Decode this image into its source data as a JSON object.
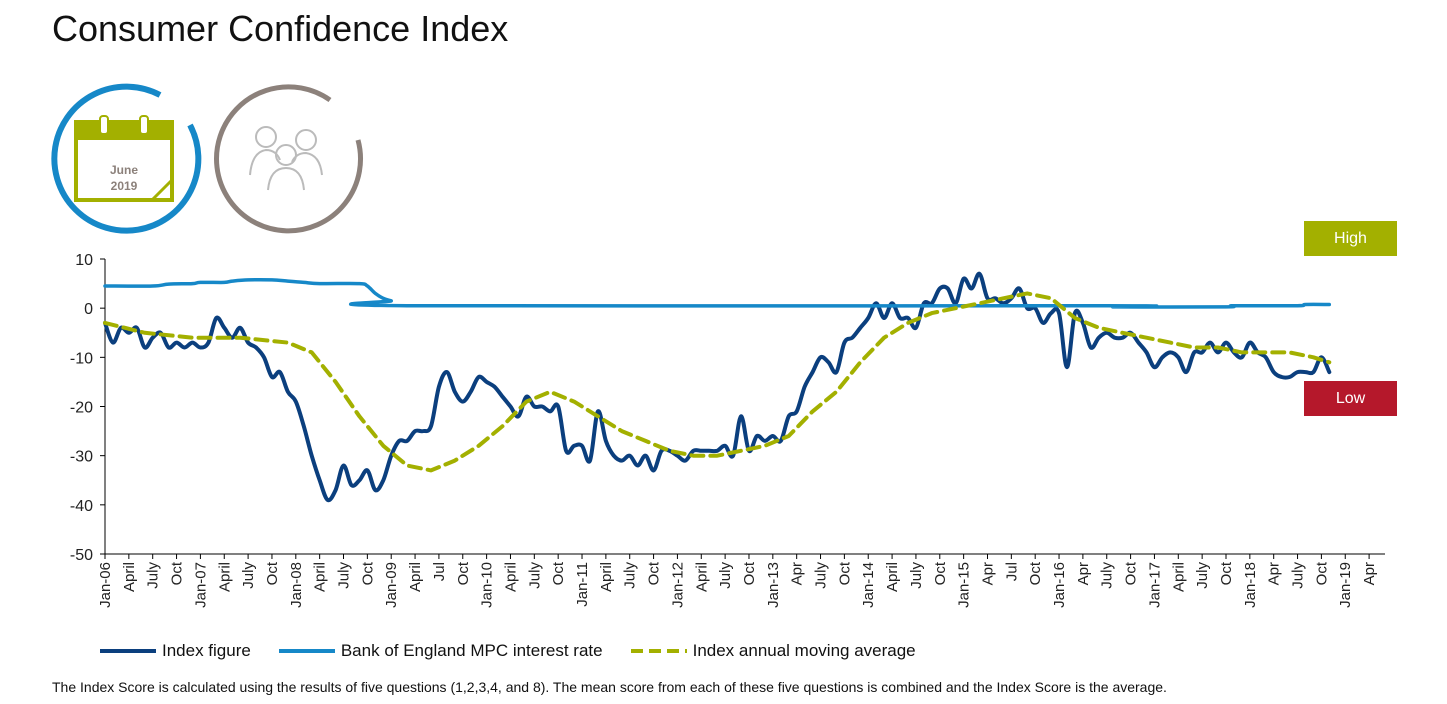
{
  "page": {
    "title": "Consumer Confidence Index",
    "date_badge": {
      "month": "June",
      "year": "2019"
    },
    "high_label": "High",
    "low_label": "Low",
    "footnote": "The Index Score is calculated using the results of five questions (1,2,3,4, and 8). The mean score from each of these five questions is combined and the Index Score is the average."
  },
  "colors": {
    "index": "#0b3f7e",
    "rate": "#1688c8",
    "average": "#a3b000",
    "high": "#a3b000",
    "low": "#b5182b",
    "calendar_ring": "#1688c8",
    "people_ring": "#8c817b"
  },
  "icons": {
    "calendar": "calendar-icon",
    "people": "people-icon"
  },
  "chart_data": {
    "type": "line",
    "title": "Consumer Confidence Index",
    "ylim": [
      -50,
      10
    ],
    "yticks": [
      10,
      0,
      -10,
      -20,
      -30,
      -40,
      -50
    ],
    "x_range": [
      "Jan-06",
      "Jun-19"
    ],
    "x_tick_labels": [
      "Jan-06",
      "April",
      "July",
      "Oct",
      "Jan-07",
      "April",
      "July",
      "Oct",
      "Jan-08",
      "April",
      "July",
      "Oct",
      "Jan-09",
      "April",
      "Jul",
      "Oct",
      "Jan-10",
      "April",
      "July",
      "Oct",
      "Jan-11",
      "April",
      "July",
      "Oct",
      "Jan-12",
      "April",
      "July",
      "Oct",
      "Jan-13",
      "Apr",
      "July",
      "Oct",
      "Jan-14",
      "April",
      "July",
      "Oct",
      "Jan-15",
      "Apr",
      "Jul",
      "Oct",
      "Jan-16",
      "Apr",
      "July",
      "Oct",
      "Jan-17",
      "April",
      "July",
      "Oct",
      "Jan-18",
      "Apr",
      "July",
      "Oct",
      "Jan-19",
      "Apr"
    ],
    "legend_position": "bottom",
    "grid": false,
    "series": [
      {
        "name": "Index figure",
        "style": "solid",
        "points": [
          [
            "2006-01",
            -3
          ],
          [
            "2006-02",
            -7
          ],
          [
            "2006-03",
            -4
          ],
          [
            "2006-04",
            -5
          ],
          [
            "2006-05",
            -4
          ],
          [
            "2006-06",
            -8
          ],
          [
            "2006-07",
            -6
          ],
          [
            "2006-08",
            -5
          ],
          [
            "2006-09",
            -8
          ],
          [
            "2006-10",
            -7
          ],
          [
            "2006-11",
            -8
          ],
          [
            "2006-12",
            -7
          ],
          [
            "2007-01",
            -8
          ],
          [
            "2007-02",
            -7
          ],
          [
            "2007-03",
            -2
          ],
          [
            "2007-04",
            -4
          ],
          [
            "2007-05",
            -6
          ],
          [
            "2007-06",
            -4
          ],
          [
            "2007-07",
            -7
          ],
          [
            "2007-08",
            -8
          ],
          [
            "2007-09",
            -10
          ],
          [
            "2007-10",
            -14
          ],
          [
            "2007-11",
            -13
          ],
          [
            "2007-12",
            -17
          ],
          [
            "2008-01",
            -19
          ],
          [
            "2008-02",
            -24
          ],
          [
            "2008-03",
            -30
          ],
          [
            "2008-04",
            -35
          ],
          [
            "2008-05",
            -39
          ],
          [
            "2008-06",
            -37
          ],
          [
            "2008-07",
            -32
          ],
          [
            "2008-08",
            -36
          ],
          [
            "2008-09",
            -35
          ],
          [
            "2008-10",
            -33
          ],
          [
            "2008-11",
            -37
          ],
          [
            "2008-12",
            -35
          ],
          [
            "2009-01",
            -30
          ],
          [
            "2009-02",
            -27
          ],
          [
            "2009-03",
            -27
          ],
          [
            "2009-04",
            -25
          ],
          [
            "2009-05",
            -25
          ],
          [
            "2009-06",
            -24
          ],
          [
            "2009-07",
            -16
          ],
          [
            "2009-08",
            -13
          ],
          [
            "2009-09",
            -17
          ],
          [
            "2009-10",
            -19
          ],
          [
            "2009-11",
            -17
          ],
          [
            "2009-12",
            -14
          ],
          [
            "2010-01",
            -15
          ],
          [
            "2010-02",
            -16
          ],
          [
            "2010-03",
            -18
          ],
          [
            "2010-04",
            -20
          ],
          [
            "2010-05",
            -22
          ],
          [
            "2010-06",
            -18
          ],
          [
            "2010-07",
            -20
          ],
          [
            "2010-08",
            -20
          ],
          [
            "2010-09",
            -21
          ],
          [
            "2010-10",
            -20
          ],
          [
            "2010-11",
            -29
          ],
          [
            "2010-12",
            -28
          ],
          [
            "2011-01",
            -28
          ],
          [
            "2011-02",
            -31
          ],
          [
            "2011-03",
            -21
          ],
          [
            "2011-04",
            -27
          ],
          [
            "2011-05",
            -30
          ],
          [
            "2011-06",
            -31
          ],
          [
            "2011-07",
            -30
          ],
          [
            "2011-08",
            -32
          ],
          [
            "2011-09",
            -30
          ],
          [
            "2011-10",
            -33
          ],
          [
            "2011-11",
            -29
          ],
          [
            "2011-12",
            -29
          ],
          [
            "2012-01",
            -30
          ],
          [
            "2012-02",
            -31
          ],
          [
            "2012-03",
            -29
          ],
          [
            "2012-04",
            -29
          ],
          [
            "2012-05",
            -29
          ],
          [
            "2012-06",
            -29
          ],
          [
            "2012-07",
            -28
          ],
          [
            "2012-08",
            -30
          ],
          [
            "2012-09",
            -22
          ],
          [
            "2012-10",
            -29
          ],
          [
            "2012-11",
            -26
          ],
          [
            "2012-12",
            -27
          ],
          [
            "2013-01",
            -26
          ],
          [
            "2013-02",
            -27
          ],
          [
            "2013-03",
            -22
          ],
          [
            "2013-04",
            -21
          ],
          [
            "2013-05",
            -16
          ],
          [
            "2013-06",
            -13
          ],
          [
            "2013-07",
            -10
          ],
          [
            "2013-08",
            -11
          ],
          [
            "2013-09",
            -13
          ],
          [
            "2013-10",
            -7
          ],
          [
            "2013-11",
            -6
          ],
          [
            "2013-12",
            -4
          ],
          [
            "2014-01",
            -2
          ],
          [
            "2014-02",
            1
          ],
          [
            "2014-03",
            -2
          ],
          [
            "2014-04",
            1
          ],
          [
            "2014-05",
            -2
          ],
          [
            "2014-06",
            -2
          ],
          [
            "2014-07",
            -4
          ],
          [
            "2014-08",
            1
          ],
          [
            "2014-09",
            1
          ],
          [
            "2014-10",
            4
          ],
          [
            "2014-11",
            4
          ],
          [
            "2014-12",
            1
          ],
          [
            "2015-01",
            6
          ],
          [
            "2015-02",
            4
          ],
          [
            "2015-03",
            7
          ],
          [
            "2015-04",
            2
          ],
          [
            "2015-05",
            2
          ],
          [
            "2015-06",
            1
          ],
          [
            "2015-07",
            2
          ],
          [
            "2015-08",
            4
          ],
          [
            "2015-09",
            0
          ],
          [
            "2015-10",
            0
          ],
          [
            "2015-11",
            -3
          ],
          [
            "2015-12",
            -1
          ],
          [
            "2016-01",
            -1
          ],
          [
            "2016-02",
            -12
          ],
          [
            "2016-03",
            -1
          ],
          [
            "2016-04",
            -3
          ],
          [
            "2016-05",
            -8
          ],
          [
            "2016-06",
            -6
          ],
          [
            "2016-07",
            -5
          ],
          [
            "2016-08",
            -6
          ],
          [
            "2016-09",
            -6
          ],
          [
            "2016-10",
            -5
          ],
          [
            "2016-11",
            -7
          ],
          [
            "2016-12",
            -9
          ],
          [
            "2017-01",
            -12
          ],
          [
            "2017-02",
            -10
          ],
          [
            "2017-03",
            -9
          ],
          [
            "2017-04",
            -10
          ],
          [
            "2017-05",
            -13
          ],
          [
            "2017-06",
            -9
          ],
          [
            "2017-07",
            -9
          ],
          [
            "2017-08",
            -7
          ],
          [
            "2017-09",
            -9
          ],
          [
            "2017-10",
            -7
          ],
          [
            "2017-11",
            -9
          ],
          [
            "2017-12",
            -10
          ],
          [
            "2018-01",
            -7
          ],
          [
            "2018-02",
            -9
          ],
          [
            "2018-03",
            -10
          ],
          [
            "2018-04",
            -13
          ],
          [
            "2018-05",
            -14
          ],
          [
            "2018-06",
            -14
          ],
          [
            "2018-07",
            -13
          ],
          [
            "2018-08",
            -13
          ],
          [
            "2018-09",
            -13
          ],
          [
            "2018-10",
            -10
          ],
          [
            "2018-11",
            -13
          ]
        ]
      },
      {
        "name": "Bank of England MPC interest rate",
        "style": "solid",
        "points": [
          [
            "2006-01",
            4.5
          ],
          [
            "2006-07",
            4.5
          ],
          [
            "2006-09",
            4.9
          ],
          [
            "2006-12",
            5.0
          ],
          [
            "2007-01",
            5.25
          ],
          [
            "2007-04",
            5.25
          ],
          [
            "2007-05",
            5.5
          ],
          [
            "2007-07",
            5.75
          ],
          [
            "2007-10",
            5.75
          ],
          [
            "2007-12",
            5.5
          ],
          [
            "2008-02",
            5.25
          ],
          [
            "2008-04",
            5.0
          ],
          [
            "2008-09",
            5.0
          ],
          [
            "2008-10",
            4.5
          ],
          [
            "2008-11",
            3.0
          ],
          [
            "2008-12",
            2.0
          ],
          [
            "2009-01",
            1.5
          ],
          [
            "2009-03",
            0.5
          ],
          [
            "2016-07",
            0.5
          ],
          [
            "2016-08",
            0.25
          ],
          [
            "2017-10",
            0.25
          ],
          [
            "2017-11",
            0.5
          ],
          [
            "2018-07",
            0.5
          ],
          [
            "2018-08",
            0.75
          ],
          [
            "2018-11",
            0.75
          ]
        ]
      },
      {
        "name": "Index annual moving average",
        "style": "dashed",
        "points": [
          [
            "2006-01",
            -3
          ],
          [
            "2006-06",
            -5
          ],
          [
            "2006-12",
            -6
          ],
          [
            "2007-06",
            -6
          ],
          [
            "2007-12",
            -7
          ],
          [
            "2008-03",
            -9
          ],
          [
            "2008-06",
            -15
          ],
          [
            "2008-09",
            -22
          ],
          [
            "2008-12",
            -28
          ],
          [
            "2009-03",
            -32
          ],
          [
            "2009-06",
            -33
          ],
          [
            "2009-09",
            -31
          ],
          [
            "2009-12",
            -28
          ],
          [
            "2010-03",
            -24
          ],
          [
            "2010-06",
            -19
          ],
          [
            "2010-09",
            -17
          ],
          [
            "2010-12",
            -19
          ],
          [
            "2011-03",
            -22
          ],
          [
            "2011-06",
            -25
          ],
          [
            "2011-09",
            -27
          ],
          [
            "2011-12",
            -29
          ],
          [
            "2012-03",
            -30
          ],
          [
            "2012-06",
            -30
          ],
          [
            "2012-09",
            -29
          ],
          [
            "2012-12",
            -28
          ],
          [
            "2013-03",
            -26
          ],
          [
            "2013-06",
            -21
          ],
          [
            "2013-09",
            -17
          ],
          [
            "2013-12",
            -11
          ],
          [
            "2014-03",
            -6
          ],
          [
            "2014-06",
            -3
          ],
          [
            "2014-09",
            -1
          ],
          [
            "2014-12",
            0
          ],
          [
            "2015-03",
            1
          ],
          [
            "2015-06",
            2
          ],
          [
            "2015-09",
            3
          ],
          [
            "2015-12",
            2
          ],
          [
            "2016-03",
            -2
          ],
          [
            "2016-06",
            -4
          ],
          [
            "2016-09",
            -5
          ],
          [
            "2016-12",
            -6
          ],
          [
            "2017-03",
            -7
          ],
          [
            "2017-06",
            -8
          ],
          [
            "2017-09",
            -8
          ],
          [
            "2017-12",
            -9
          ],
          [
            "2018-03",
            -9
          ],
          [
            "2018-06",
            -9
          ],
          [
            "2018-09",
            -10
          ],
          [
            "2018-11",
            -11
          ]
        ]
      }
    ]
  }
}
